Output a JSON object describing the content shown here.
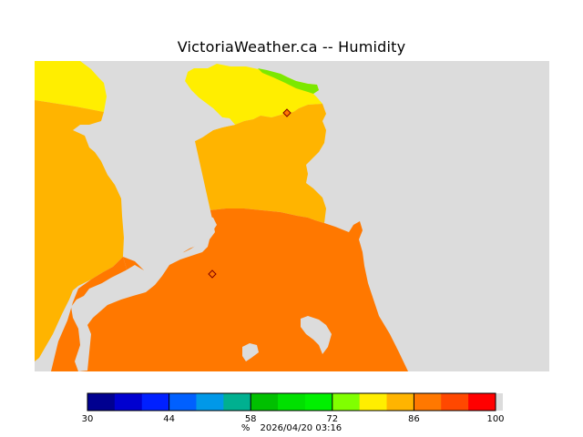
{
  "title": "VictoriaWeather.ca -- Humidity",
  "map": {
    "land_color": "#dcdcdc",
    "zones": [
      {
        "name": "yellow-zone",
        "color": "#ffee00"
      },
      {
        "name": "light-orange-zone",
        "color": "#ffb400"
      },
      {
        "name": "dark-orange-zone",
        "color": "#ff7800"
      },
      {
        "name": "green-zone",
        "color": "#7ce800"
      }
    ],
    "station_markers": 2
  },
  "legend": {
    "colors": [
      "#000090",
      "#0000d0",
      "#0020ff",
      "#0060ff",
      "#0098e8",
      "#00b090",
      "#00c000",
      "#00e000",
      "#00f000",
      "#80ff00",
      "#ffee00",
      "#ffb400",
      "#ff7800",
      "#ff4800",
      "#ff0000"
    ],
    "ticks": [
      "30",
      "44",
      "58",
      "72",
      "86",
      "100"
    ],
    "unit": "%",
    "timestamp": "2026/04/20 03:16"
  }
}
